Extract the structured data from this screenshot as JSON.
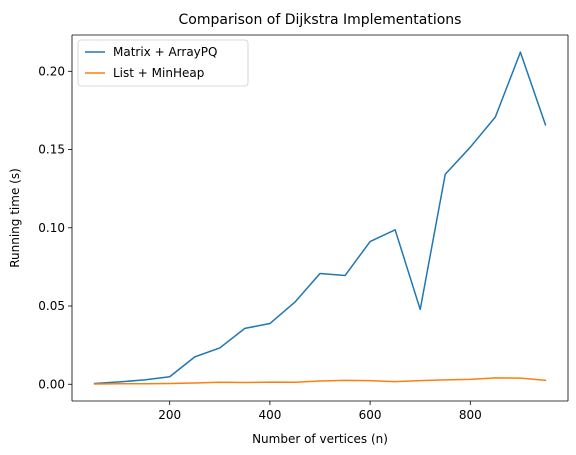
{
  "chart_data": {
    "type": "line",
    "title": "Comparison of Dijkstra Implementations",
    "xlabel": "Number of vertices (n)",
    "ylabel": "Running time (s)",
    "xlim": [
      5,
      995
    ],
    "ylim": [
      -0.0107,
      0.2232
    ],
    "xticks": [
      200,
      400,
      600,
      800
    ],
    "yticks": [
      0.0,
      0.05,
      0.1,
      0.15,
      0.2
    ],
    "xtick_labels": [
      "200",
      "400",
      "600",
      "800"
    ],
    "ytick_labels": [
      "0.00",
      "0.05",
      "0.10",
      "0.15",
      "0.20"
    ],
    "grid": false,
    "legend_position": "top-left",
    "x": [
      50,
      100,
      150,
      200,
      250,
      300,
      350,
      400,
      450,
      500,
      550,
      600,
      650,
      700,
      750,
      800,
      850,
      900,
      950
    ],
    "series": [
      {
        "name": "Matrix + ArrayPQ",
        "color": "#1f77b4",
        "values": [
          0.0005,
          0.0015,
          0.0028,
          0.0048,
          0.0175,
          0.0232,
          0.0357,
          0.0388,
          0.0525,
          0.0708,
          0.0695,
          0.0912,
          0.0987,
          0.0478,
          0.1342,
          0.1515,
          0.1708,
          0.2122,
          0.1658
        ]
      },
      {
        "name": "List + MinHeap",
        "color": "#ff7f0e",
        "values": [
          0.0002,
          0.0003,
          0.0003,
          0.0005,
          0.0008,
          0.0013,
          0.0011,
          0.0014,
          0.0013,
          0.0021,
          0.0025,
          0.0023,
          0.0017,
          0.0023,
          0.0028,
          0.0031,
          0.0041,
          0.0039,
          0.0025
        ]
      }
    ]
  }
}
